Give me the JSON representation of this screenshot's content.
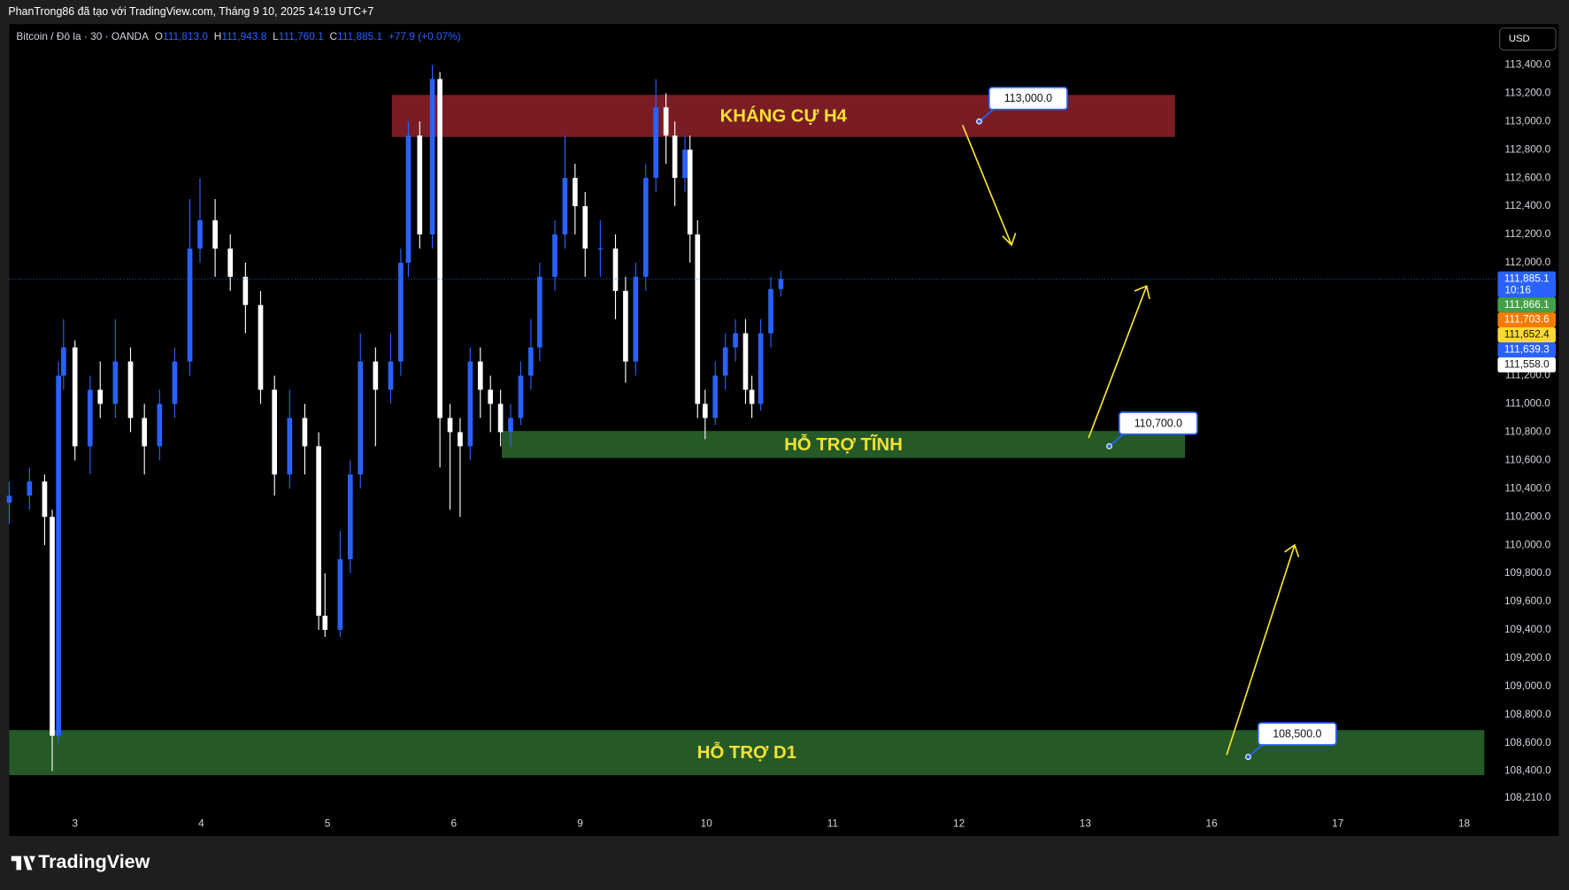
{
  "page": {
    "caption": "PhanTrong86 đã tạo với TradingView.com, Tháng 9 10, 2025 14:19 UTC+7",
    "brand": "TradingView",
    "currency": "USD"
  },
  "chart_data": {
    "type": "candlestick",
    "header": {
      "symbol": "Bitcoin / Đô la · 30 · OANDA",
      "o_label": "O",
      "open": "111,813.0",
      "h_label": "H",
      "high": "111,943.8",
      "l_label": "L",
      "low": "111,760.1",
      "c_label": "C",
      "close": "111,885.1",
      "change": "+77.9 (+0.07%)"
    },
    "up_color": "#2962ff",
    "down_color": "#ffffff",
    "grid": false,
    "xlim": [
      -0.52,
      11.25
    ],
    "xticks": [
      {
        "value": 0,
        "label": "3"
      },
      {
        "value": 1,
        "label": "4"
      },
      {
        "value": 2,
        "label": "5"
      },
      {
        "value": 3,
        "label": "6"
      },
      {
        "value": 4,
        "label": "9"
      },
      {
        "value": 5,
        "label": "10"
      },
      {
        "value": 6,
        "label": "11"
      },
      {
        "value": 7,
        "label": "12"
      },
      {
        "value": 8,
        "label": "13"
      },
      {
        "value": 9,
        "label": "16"
      },
      {
        "value": 10,
        "label": "17"
      },
      {
        "value": 11,
        "label": "18"
      }
    ],
    "ylim": [
      107940,
      113690
    ],
    "yticks": [
      {
        "value": 108210,
        "label": "108,210.0"
      },
      {
        "value": 108400,
        "label": "108,400.0"
      },
      {
        "value": 108600,
        "label": "108,600.0"
      },
      {
        "value": 108800,
        "label": "108,800.0"
      },
      {
        "value": 109000,
        "label": "109,000.0"
      },
      {
        "value": 109200,
        "label": "109,200.0"
      },
      {
        "value": 109400,
        "label": "109,400.0"
      },
      {
        "value": 109600,
        "label": "109,600.0"
      },
      {
        "value": 109800,
        "label": "109,800.0"
      },
      {
        "value": 110000,
        "label": "110,000.0"
      },
      {
        "value": 110200,
        "label": "110,200.0"
      },
      {
        "value": 110400,
        "label": "110,400.0"
      },
      {
        "value": 110600,
        "label": "110,600.0"
      },
      {
        "value": 110800,
        "label": "110,800.0"
      },
      {
        "value": 111000,
        "label": "111,000.0"
      },
      {
        "value": 111200,
        "label": "111,200.0"
      },
      {
        "value": 111400,
        "label": "111,400.0"
      },
      {
        "value": 111600,
        "label": "111,600.0"
      },
      {
        "value": 111800,
        "label": "111,800.0"
      },
      {
        "value": 112000,
        "label": "112,000.0"
      },
      {
        "value": 112200,
        "label": "112,200.0"
      },
      {
        "value": 112400,
        "label": "112,400.0"
      },
      {
        "value": 112600,
        "label": "112,600.0"
      },
      {
        "value": 112800,
        "label": "112,800.0"
      },
      {
        "value": 113000,
        "label": "113,000.0"
      },
      {
        "value": 113200,
        "label": "113,200.0"
      },
      {
        "value": 113400,
        "label": "113,400.0"
      }
    ],
    "x": [
      -0.52,
      -0.36,
      -0.24,
      -0.18,
      -0.13,
      -0.09,
      0,
      0.12,
      0.2,
      0.32,
      0.44,
      0.55,
      0.67,
      0.79,
      0.91,
      0.99,
      1.11,
      1.23,
      1.35,
      1.47,
      1.58,
      1.7,
      1.82,
      1.93,
      1.98,
      2.1,
      2.18,
      2.26,
      2.38,
      2.5,
      2.58,
      2.64,
      2.73,
      2.83,
      2.89,
      2.97,
      3.05,
      3.13,
      3.21,
      3.29,
      3.37,
      3.45,
      3.53,
      3.61,
      3.68,
      3.8,
      3.88,
      3.96,
      4.04,
      4.16,
      4.28,
      4.36,
      4.44,
      4.52,
      4.6,
      4.68,
      4.75,
      4.83,
      4.87,
      4.93,
      4.99,
      5.07,
      5.15,
      5.23,
      5.31,
      5.36,
      5.43,
      5.51,
      5.59
    ],
    "open": [
      110300,
      110350,
      110450,
      110200,
      108650,
      111200,
      111400,
      110700,
      111100,
      111000,
      111300,
      110900,
      110700,
      111000,
      111300,
      112100,
      112300,
      112100,
      111900,
      111700,
      111100,
      110500,
      110900,
      110700,
      109500,
      109400,
      109900,
      110500,
      111300,
      111100,
      111300,
      112000,
      112900,
      112200,
      113300,
      110900,
      110800,
      110700,
      111300,
      111100,
      111000,
      110800,
      110900,
      111200,
      111400,
      111900,
      112200,
      112600,
      112400,
      112100,
      112100,
      111800,
      111300,
      111900,
      112600,
      113100,
      112900,
      112600,
      112800,
      112200,
      111000,
      110900,
      111200,
      111400,
      111500,
      111100,
      111000,
      111500,
      111813
    ],
    "high": [
      110450,
      110550,
      110500,
      110250,
      111300,
      111600,
      111450,
      111200,
      111300,
      111600,
      111400,
      111000,
      111100,
      111400,
      112450,
      112600,
      112450,
      112200,
      112000,
      111800,
      111200,
      111100,
      111000,
      110800,
      109800,
      110100,
      110600,
      111500,
      111400,
      111500,
      112100,
      113000,
      113000,
      113400,
      113350,
      111000,
      110900,
      111400,
      111400,
      111200,
      111100,
      111000,
      111300,
      111600,
      112000,
      112300,
      112900,
      112700,
      112500,
      112300,
      112200,
      111900,
      112000,
      112700,
      113300,
      113200,
      113000,
      112900,
      112900,
      112300,
      111100,
      111300,
      111500,
      111600,
      111600,
      111200,
      111600,
      111900,
      111943.8
    ],
    "low": [
      110150,
      110250,
      110000,
      108400,
      108600,
      111100,
      110600,
      110500,
      110900,
      110900,
      110800,
      110500,
      110600,
      110900,
      111200,
      112000,
      111900,
      111800,
      111500,
      111000,
      110350,
      110400,
      110500,
      109400,
      109350,
      109350,
      109800,
      110400,
      110700,
      111000,
      111200,
      111900,
      112100,
      112100,
      110550,
      110250,
      110200,
      110600,
      110900,
      110800,
      110700,
      110700,
      110850,
      111100,
      111300,
      111800,
      112100,
      112200,
      111900,
      111900,
      111600,
      111150,
      111200,
      111800,
      112500,
      112700,
      112400,
      112500,
      112000,
      110900,
      110750,
      110850,
      111100,
      111300,
      111000,
      110900,
      110950,
      111400,
      111760.1
    ],
    "close": [
      110350,
      110450,
      110200,
      108650,
      111200,
      111400,
      110700,
      111100,
      111000,
      111300,
      110900,
      110700,
      111000,
      111300,
      112100,
      112300,
      112100,
      111900,
      111700,
      111100,
      110500,
      110900,
      110700,
      109500,
      109400,
      109900,
      110500,
      111300,
      111100,
      111300,
      112000,
      112900,
      112200,
      113300,
      110900,
      110800,
      110700,
      111300,
      111100,
      111000,
      110800,
      110900,
      111200,
      111400,
      111900,
      112200,
      112600,
      112400,
      112100,
      112100,
      111800,
      111300,
      111900,
      112600,
      113100,
      112900,
      112600,
      112800,
      112200,
      111000,
      110900,
      111200,
      111400,
      111500,
      111100,
      111000,
      111500,
      111813,
      111885.1
    ],
    "zones": [
      {
        "label": "KHÁNG CỰ H4",
        "top": 113188,
        "bottom": 112890,
        "x0": 2.51,
        "x1": 8.71,
        "color": "#7a1c24"
      },
      {
        "label": "HỖ TRỢ TĨNH",
        "top": 110808,
        "bottom": 110617,
        "x0": 3.38,
        "x1": 8.79,
        "color": "#255a27"
      },
      {
        "label": "HỖ TRỢ D1",
        "top": 108690,
        "bottom": 108371,
        "x0": -0.52,
        "x1": 11.16,
        "color": "#255a27"
      }
    ],
    "callouts": [
      {
        "value": 113000,
        "label": "113,000.0",
        "x": 7.16
      },
      {
        "value": 110700,
        "label": "110,700.0",
        "x": 8.19
      },
      {
        "value": 108500,
        "label": "108,500.0",
        "x": 9.29
      }
    ],
    "price_markers": [
      {
        "value": 111885.1,
        "label": "111,885.1",
        "time": "10:16",
        "color": "#2962ff"
      },
      {
        "value": 111866.1,
        "label": "111,866.1",
        "color": "#43a047"
      },
      {
        "value": 111703.6,
        "label": "111,703.6",
        "color": "#f57c00"
      },
      {
        "value": 111652.4,
        "label": "111,652.4",
        "color": "#fdd835"
      },
      {
        "value": 111639.3,
        "label": "111,639.3",
        "color": "#2962ff"
      },
      {
        "value": 111558,
        "label": "111,558.0",
        "color": "#ffffff"
      }
    ]
  }
}
